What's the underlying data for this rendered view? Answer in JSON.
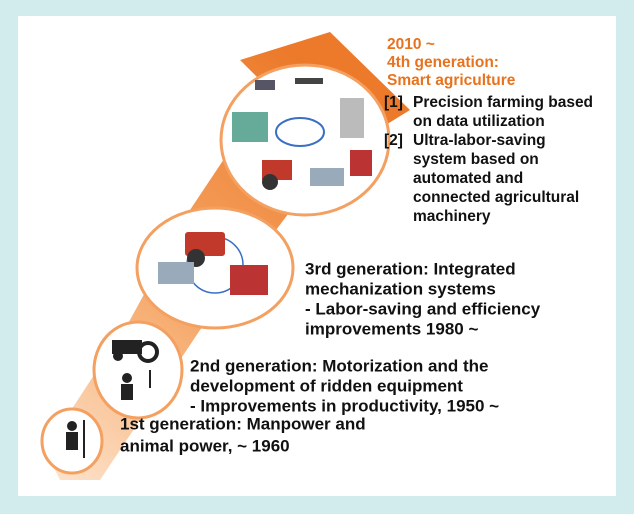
{
  "generations": [
    {
      "lines": [
        "1st generation: Manpower and",
        "animal power, ~ 1960"
      ]
    },
    {
      "lines": [
        "2nd generation: Motorization and the",
        "development of ridden equipment",
        "- Improvements in productivity, 1950 ~"
      ]
    },
    {
      "lines": [
        "3rd generation: Integrated",
        "mechanization systems",
        "- Labor-saving and efficiency",
        "improvements 1980 ~"
      ]
    },
    {
      "heading": [
        "2010 ~",
        "4th generation:",
        "Smart agriculture"
      ],
      "items": [
        {
          "label": "[1]",
          "lines": [
            "Precision farming based",
            "on data utilization"
          ]
        },
        {
          "label": "[2]",
          "lines": [
            "Ultra-labor-saving",
            "system based on",
            "automated and",
            "connected agricultural",
            "machinery"
          ]
        }
      ]
    }
  ]
}
